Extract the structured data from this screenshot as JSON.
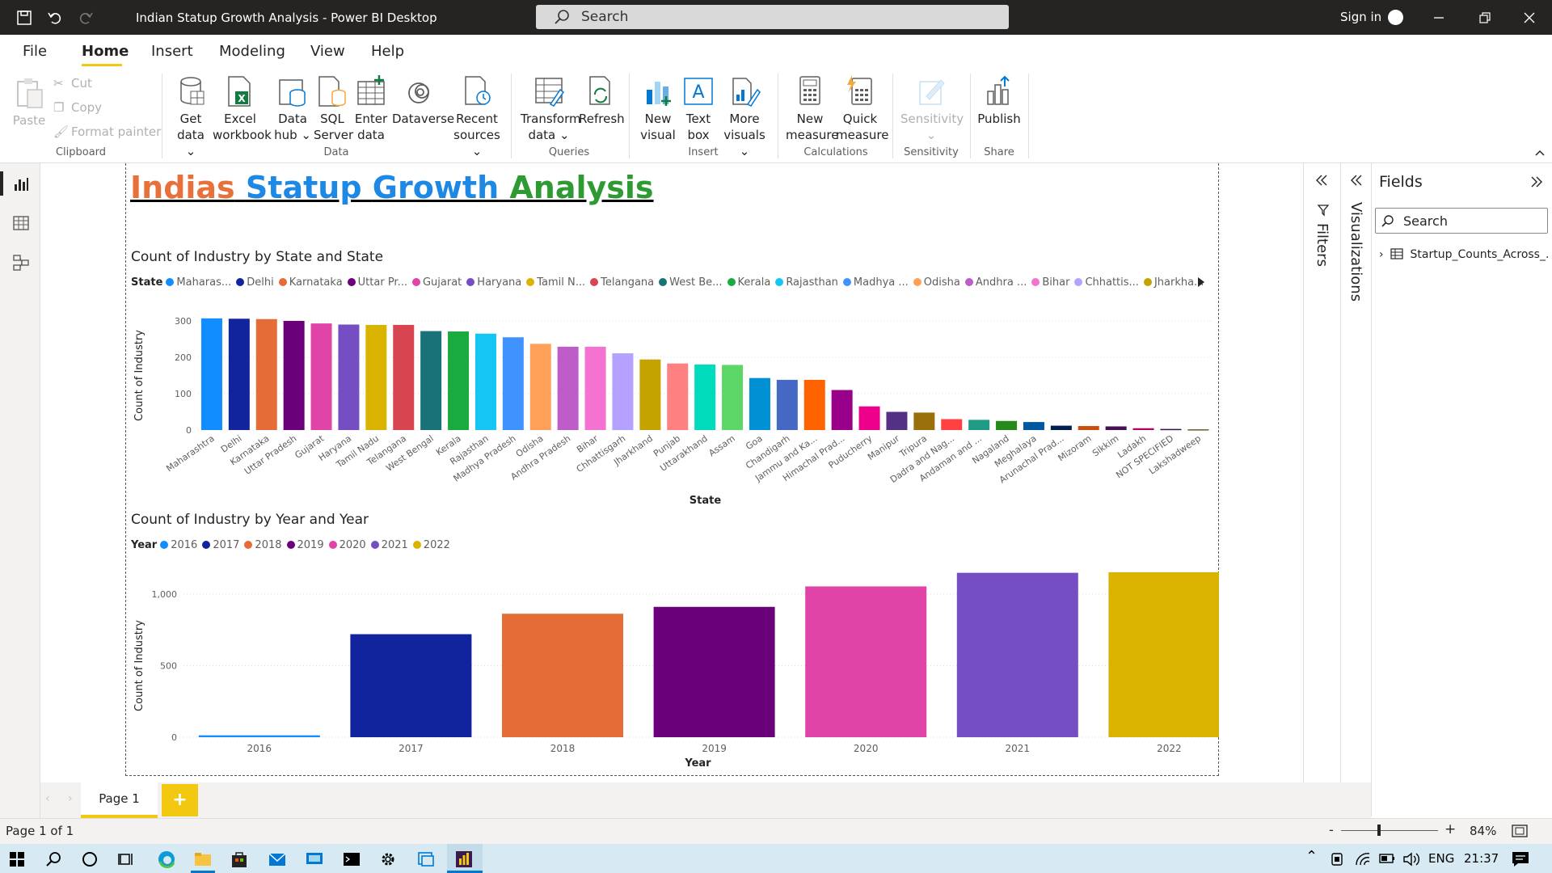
{
  "window": {
    "title": "Indian Statup Growth Analysis - Power BI Desktop",
    "search_placeholder": "Search",
    "signin": "Sign in"
  },
  "menu": [
    "File",
    "Home",
    "Insert",
    "Modeling",
    "View",
    "Help"
  ],
  "ribbon": {
    "clipboard": {
      "paste": "Paste",
      "cut": "Cut",
      "copy": "Copy",
      "format_painter": "Format painter",
      "group": "Clipboard"
    },
    "data": {
      "items": [
        {
          "l1": "Get",
          "l2": "data ⌄",
          "icon": "database-icon"
        },
        {
          "l1": "Excel",
          "l2": "workbook",
          "icon": "excel-icon"
        },
        {
          "l1": "Data",
          "l2": "hub ⌄",
          "icon": "data-hub-icon"
        },
        {
          "l1": "SQL",
          "l2": "Server",
          "icon": "sql-server-icon"
        },
        {
          "l1": "Enter",
          "l2": "data",
          "icon": "table-icon"
        },
        {
          "l1": "Dataverse",
          "l2": "",
          "icon": "dataverse-icon"
        },
        {
          "l1": "Recent",
          "l2": "sources ⌄",
          "icon": "recent-sources-icon"
        }
      ],
      "group": "Data"
    },
    "queries": {
      "transform_l1": "Transform",
      "transform_l2": "data ⌄",
      "refresh": "Refresh",
      "group": "Queries"
    },
    "insert": {
      "new_visual_l1": "New",
      "new_visual_l2": "visual",
      "text_box_l1": "Text",
      "text_box_l2": "box",
      "more_visuals_l1": "More",
      "more_visuals_l2": "visuals ⌄",
      "group": "Insert"
    },
    "calculations": {
      "new_measure_l1": "New",
      "new_measure_l2": "measure",
      "quick_measure_l1": "Quick",
      "quick_measure_l2": "measure",
      "group": "Calculations"
    },
    "sensitivity": {
      "label": "Sensitivity",
      "group": "Sensitivity"
    },
    "share": {
      "publish": "Publish",
      "group": "Share"
    }
  },
  "report": {
    "title_words": [
      {
        "text": "Indias",
        "color": "#e8703a"
      },
      {
        "text": "Statup",
        "color": "#1e88e5"
      },
      {
        "text": "Growth",
        "color": "#1e88e5"
      },
      {
        "text": "Analysis",
        "color": "#2e9b32"
      }
    ]
  },
  "chart_data": [
    {
      "type": "bar",
      "title": "Count of Industry by State and State",
      "legend_title": "State",
      "legend_items": [
        "Maharas...",
        "Delhi",
        "Karnataka",
        "Uttar Pr...",
        "Gujarat",
        "Haryana",
        "Tamil N...",
        "Telangana",
        "West Be...",
        "Kerala",
        "Rajasthan",
        "Madhya ...",
        "Odisha",
        "Andhra ...",
        "Bihar",
        "Chhattis...",
        "Jharkha..."
      ],
      "categories": [
        "Maharashtra",
        "Delhi",
        "Karnataka",
        "Uttar Pradesh",
        "Gujarat",
        "Haryana",
        "Tamil Nadu",
        "Telangana",
        "West Bengal",
        "Kerala",
        "Rajasthan",
        "Madhya Pradesh",
        "Odisha",
        "Andhra Pradesh",
        "Bihar",
        "Chhattisgarh",
        "Jharkhand",
        "Punjab",
        "Uttarakhand",
        "Assam",
        "Goa",
        "Chandigarh",
        "Jammu and Ka...",
        "Himachal Prad...",
        "Puducherry",
        "Manipur",
        "Tripura",
        "Dadra and Nag...",
        "Andaman and ...",
        "Nagaland",
        "Meghalaya",
        "Arunachal Prad...",
        "Mizoram",
        "Sikkim",
        "Ladakh",
        "NOT SPECIFIED",
        "Lakshadweep"
      ],
      "values": [
        307,
        306,
        305,
        300,
        293,
        290,
        289,
        289,
        272,
        271,
        265,
        255,
        237,
        229,
        229,
        211,
        194,
        183,
        180,
        179,
        143,
        138,
        138,
        110,
        65,
        50,
        48,
        30,
        28,
        25,
        22,
        12,
        11,
        10,
        5,
        3,
        2
      ],
      "colors": [
        "#118dff",
        "#12239e",
        "#e66c37",
        "#6b007b",
        "#e044a7",
        "#744ec2",
        "#d9b300",
        "#d64550",
        "#197278",
        "#1aab40",
        "#15c6f4",
        "#4092ff",
        "#ffa058",
        "#be5dc9",
        "#f472d0",
        "#b5a1ff",
        "#c4a200",
        "#ff8080",
        "#00dbbc",
        "#5bd667",
        "#0091d5",
        "#4668c5",
        "#ff6300",
        "#99008a",
        "#ec008c",
        "#533285",
        "#99700a",
        "#ff4141",
        "#1f9a85",
        "#25891c",
        "#0057a2",
        "#002050",
        "#c94f0f",
        "#450f54",
        "#b60064",
        "#34124f",
        "#6a5a29"
      ],
      "xlabel": "State",
      "ylabel": "Count of Industry",
      "yticks": [
        "0",
        "100",
        "200",
        "300"
      ],
      "ylim": [
        0,
        300
      ]
    },
    {
      "type": "bar",
      "title": "Count of Industry by Year and Year",
      "legend_title": "Year",
      "categories": [
        "2016",
        "2017",
        "2018",
        "2019",
        "2020",
        "2021",
        "2022"
      ],
      "values": [
        13,
        720,
        863,
        911,
        1054,
        1149,
        1153
      ],
      "colors": [
        "#118dff",
        "#12239e",
        "#e66c37",
        "#6b007b",
        "#e044a7",
        "#744ec2",
        "#d9b300"
      ],
      "xlabel": "Year",
      "ylabel": "Count of Industry",
      "yticks": [
        "0",
        "500",
        "1,000"
      ],
      "ylim": [
        0,
        1000
      ]
    }
  ],
  "panes": {
    "filters": "Filters",
    "visualizations": "Visualizations",
    "fields_title": "Fields",
    "fields_search": "Search",
    "table_name": "Startup_Counts_Across_..."
  },
  "pages": {
    "tab": "Page 1",
    "add": "+"
  },
  "status": {
    "page": "Page 1 of 1",
    "zoom": "84%"
  },
  "taskbar": {
    "lang": "ENG",
    "time": "21:37"
  }
}
